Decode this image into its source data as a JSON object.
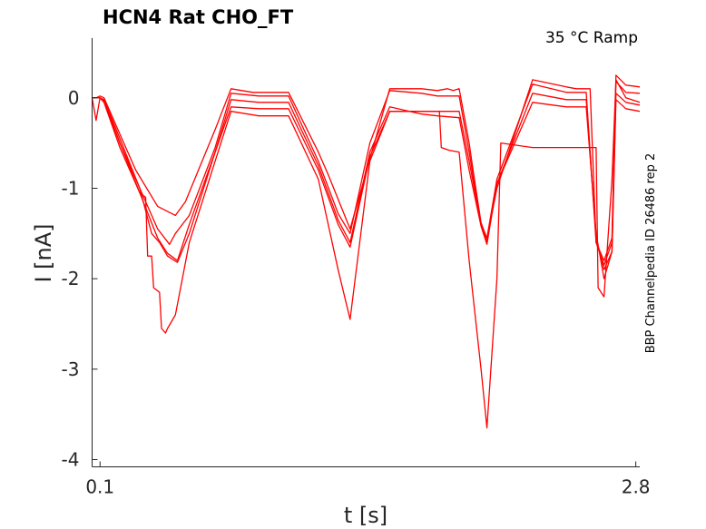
{
  "chart_data": {
    "type": "line",
    "title": "HCN4  Rat  CHO_FT",
    "subtitle": "35 °C  Ramp",
    "xlabel": "t [s]",
    "ylabel": "I [nA]",
    "side_note": "BBP Channelpedia ID 26486 rep 2",
    "xlim": [
      0.06,
      2.82
    ],
    "ylim": [
      -4.08,
      0.66
    ],
    "x_ticks": [
      0.1,
      2.8
    ],
    "x_tick_labels": [
      "0.1",
      "2.8"
    ],
    "y_ticks": [
      0,
      -1,
      -2,
      -3,
      -4
    ],
    "y_tick_labels": [
      "0",
      "-1",
      "-2",
      "-3",
      "-4"
    ],
    "grid": false,
    "color": "#ff0000",
    "series": [
      {
        "x": [
          0.06,
          0.08,
          0.1,
          0.12,
          0.18,
          0.28,
          0.39,
          0.48,
          0.53,
          0.68,
          0.76,
          0.87,
          0.92,
          0.97,
          1.05,
          1.2,
          1.25,
          1.36,
          1.56,
          1.72,
          1.8,
          1.85,
          1.88,
          1.91,
          1.96,
          1.98,
          2.02,
          2.05,
          2.1,
          2.28,
          2.45,
          2.5,
          2.55,
          2.57,
          2.6,
          2.64,
          2.68,
          2.7,
          2.75,
          2.82
        ],
        "y": [
          0.0,
          0.0,
          0.02,
          0.0,
          -0.3,
          -0.8,
          -1.2,
          -1.3,
          -1.15,
          -0.35,
          0.1,
          0.06,
          0.06,
          0.06,
          0.06,
          -0.6,
          -0.85,
          -1.45,
          0.1,
          0.1,
          0.08,
          0.1,
          0.08,
          0.1,
          -0.5,
          -0.8,
          -1.38,
          -1.56,
          -1.0,
          0.2,
          0.12,
          0.1,
          0.1,
          0.1,
          -1.6,
          -1.8,
          -1.55,
          0.25,
          0.14,
          0.12
        ]
      },
      {
        "x": [
          0.06,
          0.1,
          0.12,
          0.2,
          0.3,
          0.39,
          0.45,
          0.48,
          0.55,
          0.68,
          0.76,
          0.9,
          1.05,
          1.2,
          1.3,
          1.36,
          1.46,
          1.56,
          1.72,
          1.8,
          1.91,
          1.96,
          2.02,
          2.05,
          2.1,
          2.28,
          2.45,
          2.55,
          2.6,
          2.64,
          2.68,
          2.7,
          2.75,
          2.82
        ],
        "y": [
          0.0,
          0.0,
          -0.02,
          -0.45,
          -1.0,
          -1.45,
          -1.62,
          -1.5,
          -1.3,
          -0.55,
          0.05,
          0.02,
          0.02,
          -0.7,
          -1.28,
          -1.5,
          -0.5,
          0.08,
          0.05,
          0.02,
          0.02,
          -0.6,
          -1.4,
          -1.55,
          -0.9,
          0.15,
          0.06,
          0.06,
          -1.6,
          -1.85,
          -1.6,
          0.18,
          0.06,
          0.05
        ]
      },
      {
        "x": [
          0.06,
          0.1,
          0.12,
          0.2,
          0.3,
          0.39,
          0.44,
          0.49,
          0.55,
          0.68,
          0.76,
          0.9,
          1.05,
          1.2,
          1.3,
          1.36,
          1.46,
          1.56,
          1.72,
          1.8,
          1.91,
          1.96,
          2.02,
          2.05,
          2.1,
          2.28,
          2.45,
          2.55,
          2.6,
          2.64,
          2.68,
          2.7,
          2.75,
          2.82
        ],
        "y": [
          0.0,
          0.0,
          -0.03,
          -0.5,
          -1.05,
          -1.55,
          -1.72,
          -1.8,
          -1.4,
          -0.6,
          -0.02,
          -0.05,
          -0.05,
          -0.75,
          -1.35,
          -1.6,
          -0.6,
          -0.1,
          -0.18,
          -0.2,
          -0.22,
          -0.8,
          -1.42,
          -1.62,
          -0.95,
          0.05,
          -0.02,
          -0.02,
          -1.55,
          -1.9,
          -1.7,
          0.05,
          -0.05,
          -0.08
        ]
      },
      {
        "x": [
          0.06,
          0.1,
          0.12,
          0.2,
          0.3,
          0.36,
          0.4,
          0.44,
          0.49,
          0.55,
          0.68,
          0.76,
          0.9,
          1.05,
          1.2,
          1.3,
          1.36,
          1.46,
          1.56,
          1.72,
          1.8,
          1.91,
          1.96,
          2.02,
          2.05,
          2.1,
          2.28,
          2.45,
          2.55,
          2.6,
          2.64,
          2.68,
          2.7,
          2.75,
          2.82
        ],
        "y": [
          0.0,
          0.0,
          -0.04,
          -0.5,
          -1.0,
          -1.5,
          -1.6,
          -1.75,
          -1.82,
          -1.5,
          -0.6,
          -0.1,
          -0.12,
          -0.12,
          -0.8,
          -1.4,
          -1.65,
          -0.65,
          -0.15,
          -0.15,
          -0.15,
          -0.15,
          -0.7,
          -1.4,
          -1.6,
          -0.95,
          -0.05,
          -0.1,
          -0.1,
          -1.5,
          -2.0,
          -1.7,
          -0.02,
          -0.12,
          -0.15
        ]
      },
      {
        "x": [
          0.06,
          0.08,
          0.1,
          0.12,
          0.2,
          0.3,
          0.33,
          0.34,
          0.36,
          0.37,
          0.4,
          0.41,
          0.43,
          0.44,
          0.48,
          0.55,
          0.68,
          0.76,
          0.9,
          1.05,
          1.2,
          1.3,
          1.36,
          1.46,
          1.56,
          1.72,
          1.81,
          1.82,
          1.86,
          1.91,
          1.96,
          2.02,
          2.05,
          2.1,
          2.12,
          2.28,
          2.45,
          2.55,
          2.6,
          2.61,
          2.64,
          2.68,
          2.7,
          2.75,
          2.82
        ],
        "y": [
          0.0,
          -0.25,
          0.0,
          -0.05,
          -0.55,
          -1.05,
          -1.1,
          -1.75,
          -1.75,
          -2.1,
          -2.15,
          -2.55,
          -2.6,
          -2.55,
          -2.4,
          -1.6,
          -0.7,
          -0.15,
          -0.2,
          -0.2,
          -0.9,
          -1.9,
          -2.45,
          -0.7,
          -0.15,
          -0.15,
          -0.15,
          -0.55,
          -0.58,
          -0.6,
          -1.8,
          -3.0,
          -3.65,
          -2.0,
          -0.5,
          -0.55,
          -0.55,
          -0.55,
          -0.55,
          -2.1,
          -2.2,
          -0.9,
          0.2,
          0.0,
          -0.05
        ]
      }
    ]
  }
}
